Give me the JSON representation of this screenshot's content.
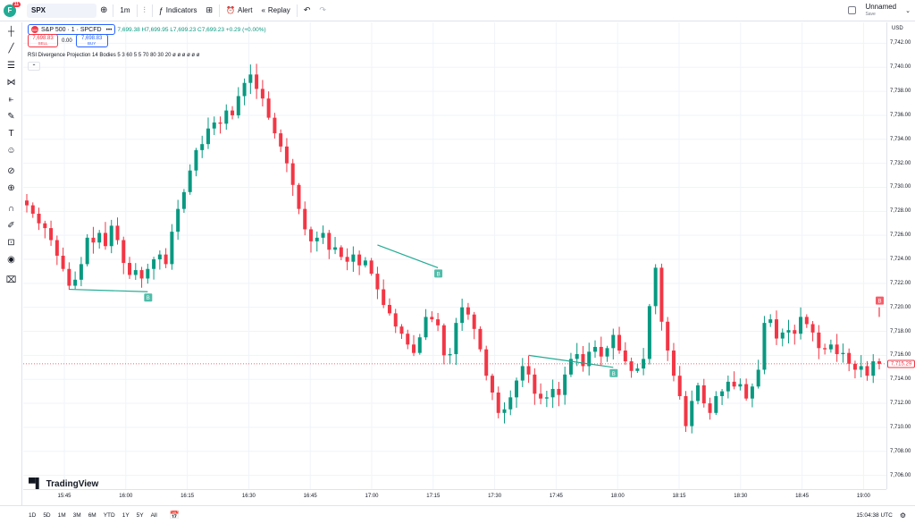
{
  "toolbar": {
    "logo_letter": "F",
    "notif_count": "11",
    "symbol": "SPX",
    "interval": "1m",
    "indicators_label": "Indicators",
    "alert_label": "Alert",
    "replay_label": "Replay",
    "layout_name": "Unnamed",
    "layout_sub": "Save"
  },
  "legend": {
    "symbol_title": "S&P 500 · 1 · SPCFD",
    "ohlc": "7,699.38  H7,699.95  L7,699.23  C7,699.23  +0.29 (+0.00%)",
    "sell_price": "7,698.83",
    "sell_label": "SELL",
    "spread": "0.00",
    "buy_price": "7,698.83",
    "buy_label": "BUY",
    "indicator": "RSI Divergence Projection  14  Bodies  5  3  60  5  5  70  80  30  20  ø  ø  ø  ø     ø         ø"
  },
  "price_axis": {
    "currency": "USD",
    "labels": [
      "7,742.00",
      "7,740.00",
      "7,738.00",
      "7,736.00",
      "7,734.00",
      "7,732.00",
      "7,730.00",
      "7,728.00",
      "7,726.00",
      "7,724.00",
      "7,722.00",
      "7,720.00",
      "7,718.00",
      "7,716.00",
      "7,714.00",
      "7,712.00",
      "7,710.00",
      "7,708.00",
      "7,706.00"
    ],
    "current_price": "7,715.29"
  },
  "time_axis": {
    "labels": [
      "15:45",
      "16:00",
      "16:15",
      "16:30",
      "16:45",
      "17:00",
      "17:15",
      "17:30",
      "17:45",
      "18:00",
      "18:15",
      "18:30",
      "18:45",
      "19:00"
    ]
  },
  "brand": "TradingView",
  "bottombar": {
    "ranges": [
      "1D",
      "5D",
      "1M",
      "3M",
      "6M",
      "YTD",
      "1Y",
      "5Y",
      "All"
    ],
    "clock": "15:04:38 UTC"
  },
  "colors": {
    "up": "#089981",
    "down": "#f23645",
    "bull_div": "#22ab94",
    "bear_div": "#f23645"
  },
  "icons": [
    "crosshair-icon",
    "trendline-icon",
    "fib-icon",
    "pattern-icon",
    "measure-icon",
    "brush-icon",
    "text-icon",
    "emoji-icon",
    "ruler-icon",
    "zoom-icon",
    "magnet-icon",
    "lock-draw-icon",
    "lock-icon",
    "eye-icon",
    "trash-icon"
  ],
  "chart_data": {
    "type": "candlestick",
    "ylim": [
      7705,
      7743
    ],
    "close_series": [
      7728.5,
      7727.8,
      7727,
      7726.6,
      7725.6,
      7724.3,
      7723.2,
      7721.8,
      7722.3,
      7723.6,
      7725.8,
      7725.4,
      7726.2,
      7725.1,
      7726.8,
      7725.6,
      7723.7,
      7722.7,
      7723.1,
      7722.4,
      7723.2,
      7724,
      7724.4,
      7723.6,
      7726.3,
      7728.2,
      7729.6,
      7731.4,
      7733.1,
      7733.6,
      7734.9,
      7735.4,
      7735.3,
      7736.4,
      7736,
      7737.6,
      7738.7,
      7739.4,
      7738.2,
      7737.4,
      7735.8,
      7734.5,
      7733.4,
      7732,
      7730.2,
      7728.2,
      7726.5,
      7725.5,
      7725.8,
      7726.2,
      7724.8,
      7725,
      7724.2,
      7723.8,
      7724.4,
      7723.5,
      7723.9,
      7722.8,
      7721.5,
      7720.2,
      7719.5,
      7718.4,
      7717.8,
      7716.9,
      7716.2,
      7717.5,
      7719.2,
      7719,
      7718.5,
      7716,
      7716.1,
      7718.7,
      7720,
      7719.4,
      7718.2,
      7716.5,
      7714.3,
      7712.9,
      7711.2,
      7711.5,
      7712.5,
      7713.9,
      7715.1,
      7714.4,
      7712.8,
      7712.4,
      7712.5,
      7713.2,
      7712.7,
      7714.4,
      7715.7,
      7716.1,
      7715.1,
      7716.3,
      7716.7,
      7715.9,
      7716.6,
      7717.7,
      7716.4,
      7715.5,
      7714.7,
      7714.9,
      7715.7,
      7720.1,
      7723.3,
      7718.8,
      7716.4,
      7714.3,
      7712.6,
      7710.1,
      7712.2,
      7713.5,
      7712,
      7711.2,
      7712.6,
      7713,
      7713.8,
      7713.4,
      7713.6,
      7712.4,
      7713.4,
      7714.8,
      7718.7,
      7719,
      7717.4,
      7717.9,
      7718.1,
      7717.8,
      7719.2,
      7718.6,
      7717.9,
      7716.6,
      7716.5,
      7716.9,
      7716.1,
      7716.2,
      7715.3,
      7714.8,
      7715.1,
      7714.3,
      7715.5,
      7715.29
    ],
    "divergences": [
      {
        "type": "bullish",
        "label": "B"
      },
      {
        "type": "bullish",
        "label": "B"
      },
      {
        "type": "bullish",
        "label": "B"
      },
      {
        "type": "bearish",
        "label": "B"
      }
    ]
  }
}
